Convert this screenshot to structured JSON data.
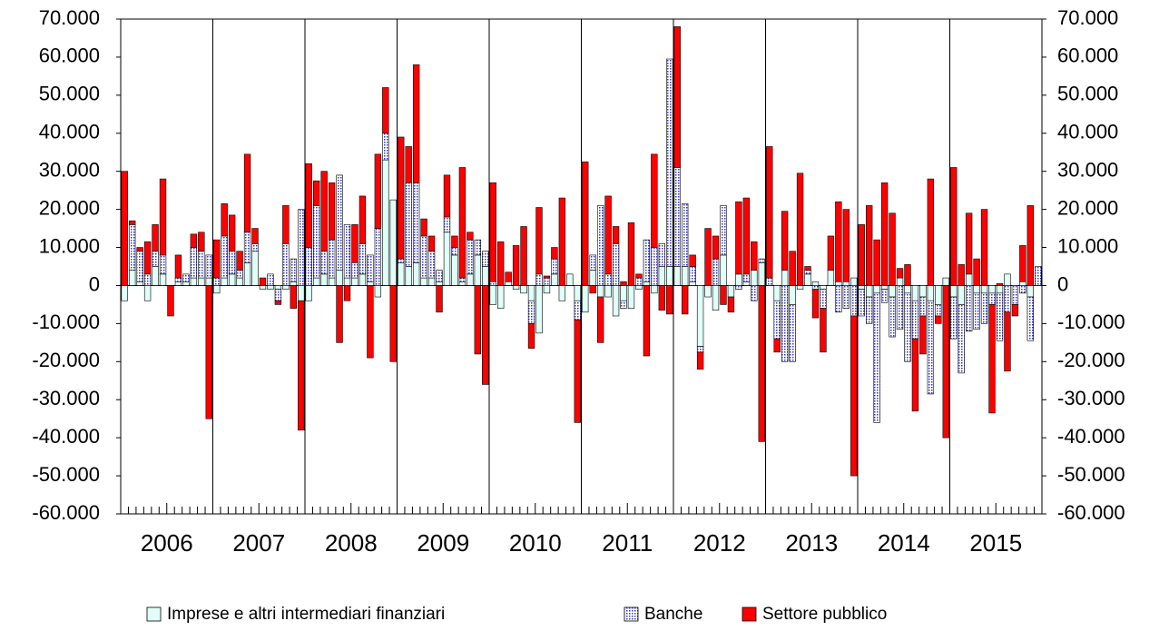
{
  "chart_data": {
    "type": "stacked_bar",
    "categories": [
      null,
      null,
      null,
      null,
      null,
      null,
      null,
      null,
      null,
      null,
      null,
      null,
      null,
      null,
      null,
      null,
      null,
      null,
      null,
      null,
      null,
      null,
      null,
      null,
      null,
      null,
      null,
      null,
      null,
      null,
      null,
      null,
      null,
      null,
      null,
      null,
      null,
      null,
      null,
      null,
      null,
      null,
      null,
      null,
      null,
      null,
      null,
      null,
      null,
      null,
      null,
      null,
      null,
      null,
      null,
      null,
      null,
      null,
      null,
      null,
      null,
      null,
      null,
      null,
      null,
      null,
      null,
      null,
      null,
      null,
      null,
      null,
      null,
      null,
      null,
      null,
      null,
      null,
      null,
      null,
      null,
      null,
      null,
      null,
      null,
      null,
      null,
      null,
      null,
      null,
      null,
      null,
      null,
      null,
      null,
      null,
      null,
      null,
      null,
      null,
      null,
      null,
      null,
      null,
      null,
      null,
      null,
      null,
      null,
      null,
      null,
      null,
      null,
      null,
      null,
      null,
      null,
      null,
      null,
      null
    ],
    "groups": [
      "2006",
      "2007",
      "2008",
      "2009",
      "2010",
      "2011",
      "2012",
      "2013",
      "2014",
      "2015"
    ],
    "series": [
      {
        "name": "Imprese e altri intermediari finanziari",
        "color": "#e0fff8",
        "pattern": "none",
        "values": [
          -4000,
          4000,
          1000,
          -4000,
          5000,
          3000,
          0,
          1000,
          1000,
          2000,
          2000,
          2000,
          -2000,
          2000,
          3000,
          2000,
          6000,
          9000,
          -1000,
          -1000,
          -1000,
          -1000,
          1000,
          -4000,
          -4000,
          2000,
          3000,
          2000,
          4000,
          2000,
          2000,
          3000,
          1000,
          -3000,
          33000,
          22500,
          6000,
          5000,
          6000,
          2000,
          2000,
          1000,
          14000,
          8000,
          1000,
          3000,
          8000,
          5000,
          -5000,
          -6000,
          1000,
          -1000,
          -2000,
          -4000,
          -12500,
          -2000,
          3000,
          -4000,
          3000,
          -4000,
          -7000,
          4000,
          -3000,
          -3000,
          -8000,
          -4000,
          -6000,
          -1000,
          1000,
          -2000,
          5000,
          5000,
          5000,
          5000,
          1000,
          -16000,
          -3000,
          -6500,
          8000,
          -3000,
          3000,
          1000,
          4000,
          6000,
          0,
          -4000,
          4000,
          -5000,
          -1000,
          3000,
          1000,
          -1000,
          4000,
          1000,
          1000,
          2000,
          -1000,
          -3000,
          -2000,
          -1000,
          -3000,
          2000,
          -2000,
          -4000,
          -3000,
          -4000,
          -5000,
          2000,
          -3000,
          -5000,
          3000,
          -2000,
          -2000,
          -2000,
          -2000,
          3000,
          0,
          1000,
          -3000,
          0
        ]
      },
      {
        "name": "Banche",
        "color": "#3333cc",
        "pattern": "dots",
        "values": [
          0,
          12000,
          8000,
          3000,
          4000,
          5000,
          0,
          1000,
          2000,
          8000,
          7000,
          6000,
          2000,
          11000,
          6000,
          2000,
          8000,
          2000,
          0,
          3000,
          -3000,
          11000,
          6000,
          20000,
          10000,
          19000,
          6000,
          10000,
          25000,
          14000,
          4000,
          8000,
          7000,
          15000,
          7000,
          0,
          1000,
          22000,
          21000,
          11000,
          7000,
          3000,
          4000,
          2000,
          1000,
          9000,
          4000,
          4000,
          1000,
          0,
          0,
          0,
          0,
          -6000,
          3000,
          2000,
          4000,
          0,
          0,
          -5000,
          0,
          4000,
          21000,
          3000,
          11000,
          -2000,
          0,
          2000,
          11000,
          10000,
          6000,
          54500,
          26000,
          16500,
          4000,
          -1500,
          0,
          7000,
          13000,
          0,
          -1000,
          2000,
          -4000,
          1000,
          2000,
          -10000,
          -20000,
          -15000,
          0,
          1000,
          -1000,
          -5000,
          0,
          -7000,
          -6000,
          -8000,
          -7000,
          -7000,
          -34000,
          -3500,
          -10500,
          -11500,
          -18000,
          -10000,
          -5000,
          -24500,
          -3000,
          0,
          -11000,
          -18000,
          -12000,
          -9500,
          -8000,
          -3000,
          -12500,
          -7000,
          -5000,
          -2000,
          -11500,
          5000
        ]
      },
      {
        "name": "Settore pubblico",
        "color": "#ff0000",
        "pattern": "none",
        "values": [
          30000,
          1000,
          1000,
          8500,
          7000,
          20000,
          -8000,
          6000,
          0,
          3500,
          5000,
          -35000,
          10000,
          8500,
          9500,
          5000,
          20500,
          4000,
          2000,
          0,
          -1000,
          10000,
          -6000,
          -34000,
          22000,
          6500,
          21000,
          15000,
          -15000,
          -4000,
          10000,
          12500,
          -19000,
          19500,
          12000,
          -20000,
          32000,
          9500,
          31000,
          4500,
          4000,
          -7000,
          11000,
          3000,
          29000,
          2000,
          -18000,
          -26000,
          26000,
          11500,
          2500,
          10500,
          15500,
          -6500,
          17500,
          500,
          3000,
          23000,
          0,
          -27000,
          32500,
          -2000,
          -12000,
          20500,
          4500,
          1000,
          16500,
          1000,
          -18500,
          24500,
          -6500,
          -7500,
          37000,
          -7500,
          3000,
          -4500,
          15000,
          6000,
          -5000,
          -4000,
          19000,
          20000,
          7500,
          -41000,
          34500,
          -3500,
          15500,
          9000,
          29500,
          1000,
          -7500,
          -11500,
          9000,
          21000,
          19000,
          -42000,
          16000,
          21000,
          12000,
          27000,
          19000,
          2500,
          5500,
          -19000,
          -10000,
          28000,
          -2000,
          -40000,
          31000,
          5500,
          16000,
          7000,
          20000,
          -28500,
          500,
          -15500,
          -3000,
          9500,
          21000,
          0
        ]
      }
    ],
    "ylim": [
      -60000,
      70000
    ],
    "yticks": [
      {
        "value": -60000,
        "label": "-60.000"
      },
      {
        "value": -50000,
        "label": "-50.000"
      },
      {
        "value": -40000,
        "label": "-40.000"
      },
      {
        "value": -30000,
        "label": "-30.000"
      },
      {
        "value": -20000,
        "label": "-20.000"
      },
      {
        "value": -10000,
        "label": "-10.000"
      },
      0,
      {
        "value": 10000,
        "label": "10.000"
      },
      {
        "value": 20000,
        "label": "20.000"
      },
      {
        "value": 30000,
        "label": "30.000"
      },
      {
        "value": 40000,
        "label": "40.000"
      },
      {
        "value": 50000,
        "label": "50.000"
      },
      {
        "value": 60000,
        "label": "60.000"
      },
      {
        "value": 70000,
        "label": "70.000"
      }
    ],
    "y2lim": [
      -60000,
      70000
    ],
    "y2ticks": [
      {
        "value": -60000,
        "label": "-60.000"
      },
      {
        "value": -50000,
        "label": "-50.000"
      },
      {
        "value": -40000,
        "label": "-40.000"
      },
      {
        "value": -30000,
        "label": "-30.000"
      },
      {
        "value": -20000,
        "label": "-20.000"
      },
      {
        "value": -10000,
        "label": "-10.000"
      },
      0,
      {
        "value": 10000,
        "label": "10.000"
      },
      {
        "value": 20000,
        "label": "20.000"
      },
      {
        "value": 30000,
        "label": "30.000"
      },
      {
        "value": 40000,
        "label": "40.000"
      },
      {
        "value": 50000,
        "label": "50.000"
      },
      {
        "value": 60000,
        "label": "60.000"
      },
      {
        "value": 70000,
        "label": "70.000"
      }
    ],
    "grid": false,
    "legend": "bottom"
  }
}
